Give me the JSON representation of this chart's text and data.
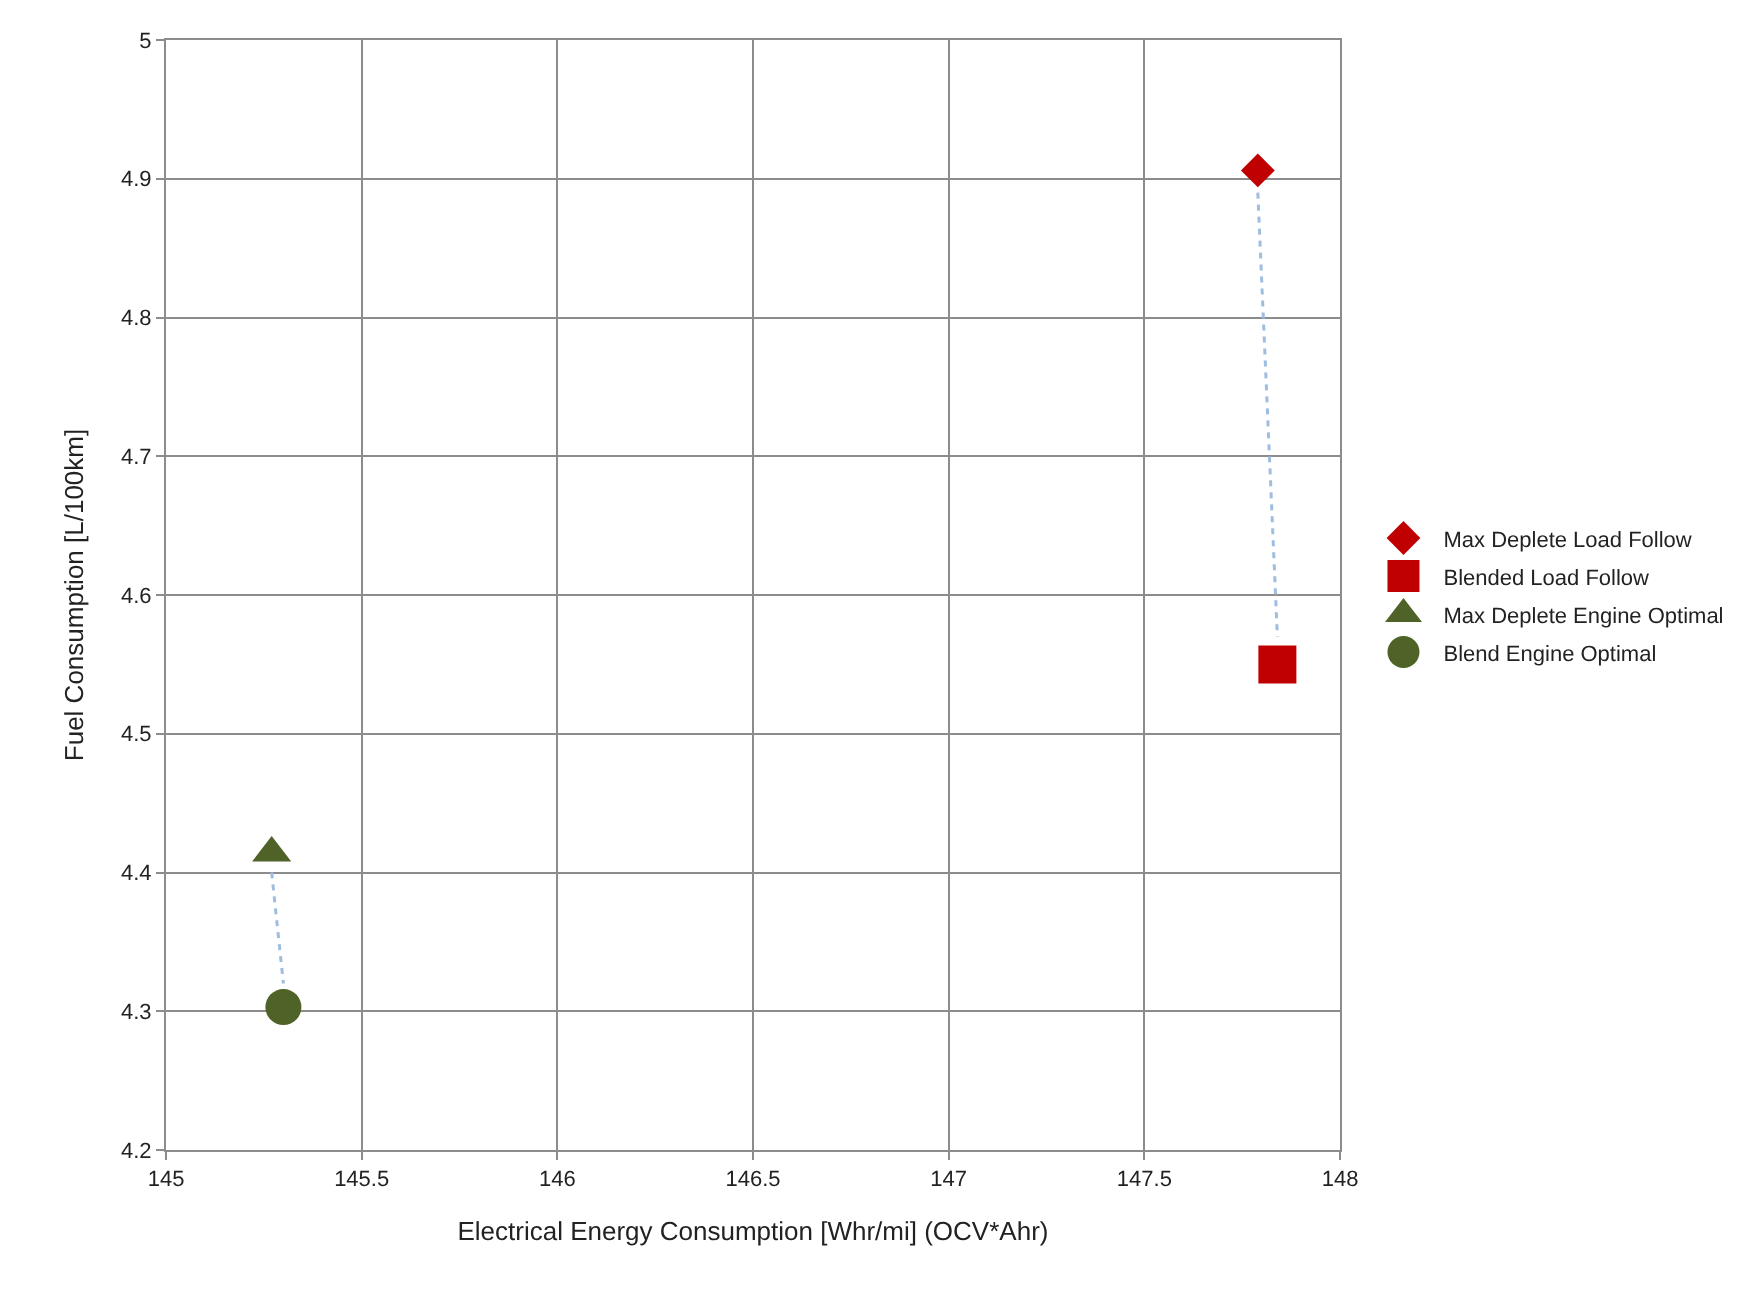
{
  "chart_data": {
    "type": "scatter",
    "xlabel": "Electrical Energy Consumption [Whr/mi] (OCV*Ahr)",
    "ylabel": "Fuel Consumption [L/100km]",
    "series": [
      {
        "name": "Max Deplete Load Follow",
        "color": "#c00000",
        "marker": "diamond",
        "x": [
          147.79
        ],
        "values": [
          4.906
        ]
      },
      {
        "name": "Blended Load Follow",
        "color": "#c00000",
        "marker": "square",
        "x": [
          147.84
        ],
        "values": [
          4.55
        ]
      },
      {
        "name": "Max Deplete Engine Optimal",
        "color": "#4f6228",
        "marker": "triangle",
        "x": [
          145.27
        ],
        "values": [
          4.414
        ]
      },
      {
        "name": "Blend Engine Optimal",
        "color": "#4f6228",
        "marker": "circle",
        "x": [
          145.3
        ],
        "values": [
          4.303
        ]
      },
      {
        "type": "line",
        "color": "#9fbde0",
        "marker": "none",
        "line_style": "dotted",
        "x": [
          147.79,
          147.84
        ],
        "values": [
          4.89,
          4.57
        ]
      },
      {
        "type": "line",
        "color": "#9fbde0",
        "marker": "none",
        "line_style": "dotted",
        "x": [
          145.27,
          145.3
        ],
        "values": [
          4.4,
          4.32
        ]
      }
    ],
    "xlim": [
      145,
      148
    ],
    "xticks": [
      145,
      145.5,
      146,
      146.5,
      147,
      147.5,
      148
    ],
    "ylim": [
      4.2,
      5
    ],
    "yticks": [
      4.2,
      4.3,
      4.4,
      4.5,
      4.6,
      4.7,
      4.8,
      4.9,
      5
    ],
    "grid": true,
    "legend": "right"
  }
}
